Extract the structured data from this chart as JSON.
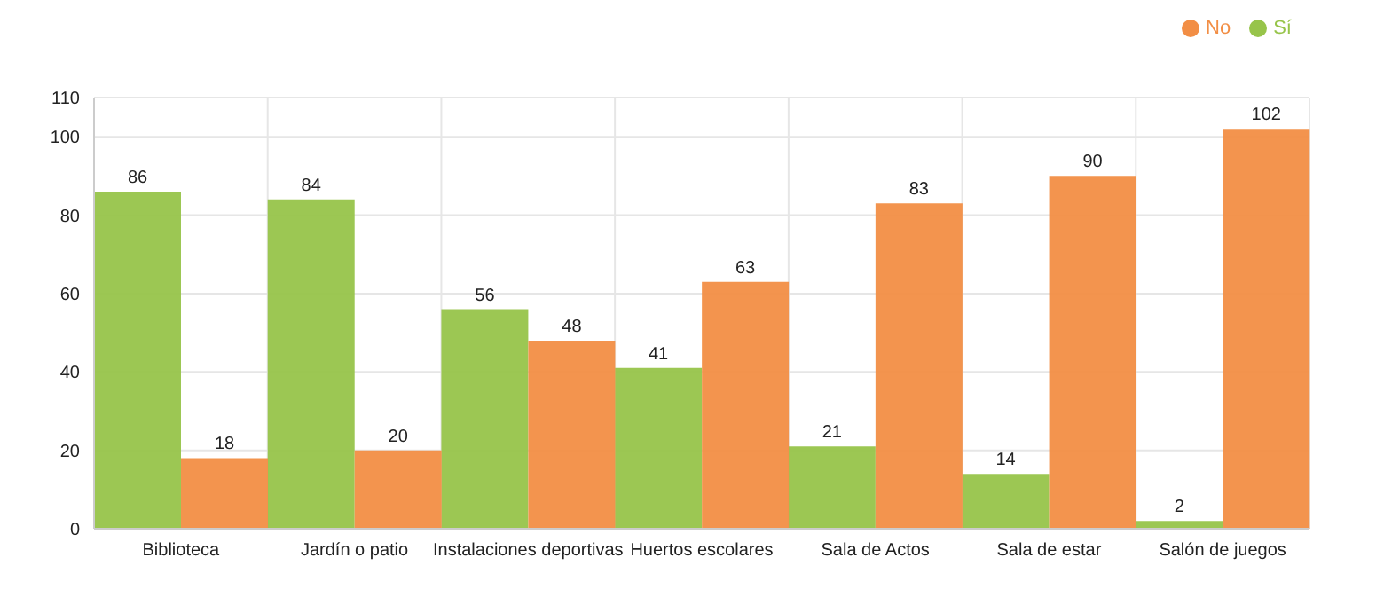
{
  "chart_data": {
    "type": "bar",
    "categories": [
      "Biblioteca",
      "Jardín o patio",
      "Instalaciones deportivas",
      "Huertos escolares",
      "Sala de Actos",
      "Sala de estar",
      "Salón de juegos"
    ],
    "series": [
      {
        "name": "Sí",
        "color": "#97c44a",
        "values": [
          86,
          84,
          56,
          41,
          21,
          14,
          2
        ]
      },
      {
        "name": "No",
        "color": "#f28e45",
        "values": [
          18,
          20,
          48,
          63,
          83,
          90,
          102
        ]
      }
    ],
    "ylim": [
      0,
      110
    ],
    "yticks": [
      0,
      20,
      40,
      60,
      80,
      100,
      110
    ],
    "grid": true,
    "legend": "top right",
    "data_labels": true
  }
}
